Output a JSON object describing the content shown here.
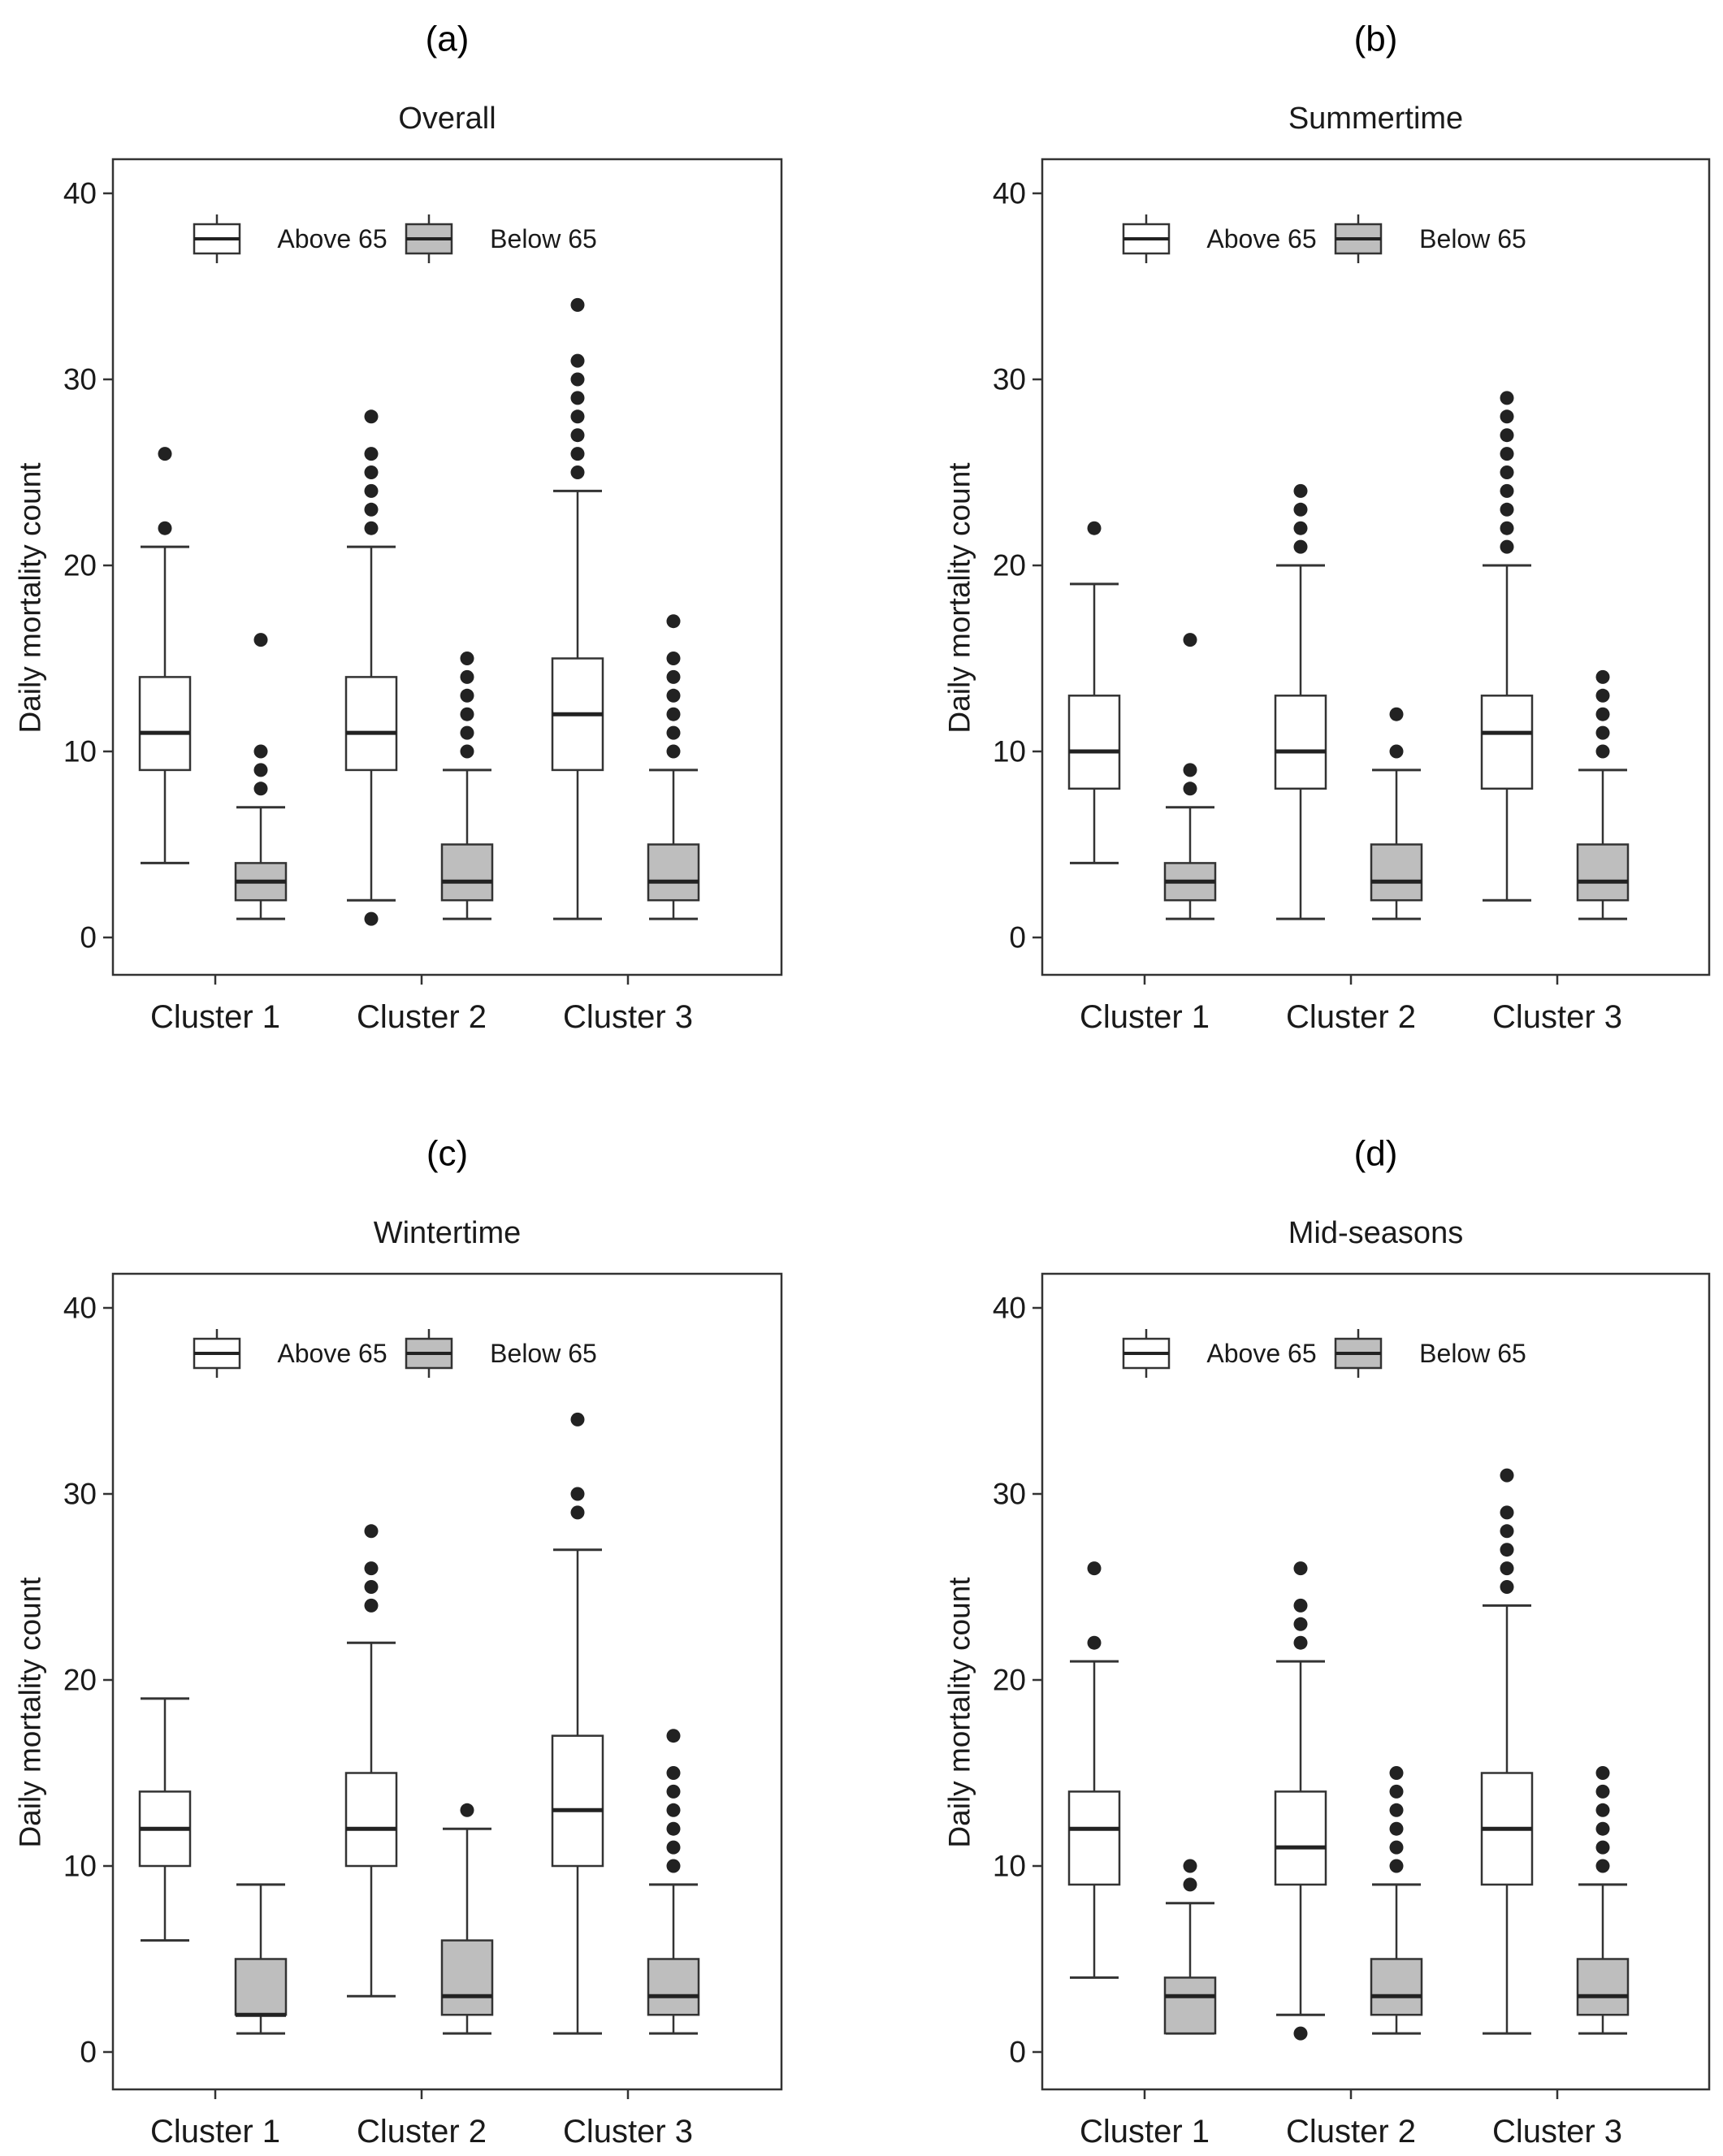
{
  "chart_data": [
    {
      "type": "boxplot",
      "panel_label": "(a)",
      "title": "Overall",
      "ylabel": "Daily mortality count",
      "ylim": [
        0,
        40
      ],
      "yticks": [
        0,
        10,
        20,
        30,
        40
      ],
      "categories": [
        "Cluster 1",
        "Cluster 2",
        "Cluster 3"
      ],
      "legend": {
        "position": "top",
        "entries": [
          "Above 65",
          "Below 65"
        ]
      },
      "series": [
        {
          "name": "Above 65",
          "fill": "#ffffff",
          "boxes": [
            {
              "min": 4,
              "q1": 9,
              "median": 11,
              "q3": 14,
              "max": 21,
              "outliers": [
                22,
                26
              ]
            },
            {
              "min": 2,
              "q1": 9,
              "median": 11,
              "q3": 14,
              "max": 21,
              "outliers": [
                1,
                22,
                23,
                24,
                25,
                26,
                28
              ]
            },
            {
              "min": 1,
              "q1": 9,
              "median": 12,
              "q3": 15,
              "max": 24,
              "outliers": [
                25,
                26,
                27,
                28,
                29,
                30,
                31,
                34
              ]
            }
          ]
        },
        {
          "name": "Below 65",
          "fill": "#bebebe",
          "boxes": [
            {
              "min": 1,
              "q1": 2,
              "median": 3,
              "q3": 4,
              "max": 7,
              "outliers": [
                8,
                9,
                10,
                16
              ]
            },
            {
              "min": 1,
              "q1": 2,
              "median": 3,
              "q3": 5,
              "max": 9,
              "outliers": [
                10,
                11,
                12,
                13,
                14,
                15
              ]
            },
            {
              "min": 1,
              "q1": 2,
              "median": 3,
              "q3": 5,
              "max": 9,
              "outliers": [
                10,
                11,
                12,
                13,
                14,
                15,
                17
              ]
            }
          ]
        }
      ]
    },
    {
      "type": "boxplot",
      "panel_label": "(b)",
      "title": "Summertime",
      "ylabel": "Daily mortality count",
      "ylim": [
        0,
        40
      ],
      "yticks": [
        0,
        10,
        20,
        30,
        40
      ],
      "categories": [
        "Cluster 1",
        "Cluster 2",
        "Cluster 3"
      ],
      "legend": {
        "position": "top",
        "entries": [
          "Above 65",
          "Below 65"
        ]
      },
      "series": [
        {
          "name": "Above 65",
          "fill": "#ffffff",
          "boxes": [
            {
              "min": 4,
              "q1": 8,
              "median": 10,
              "q3": 13,
              "max": 19,
              "outliers": [
                22
              ]
            },
            {
              "min": 1,
              "q1": 8,
              "median": 10,
              "q3": 13,
              "max": 20,
              "outliers": [
                21,
                22,
                23,
                24
              ]
            },
            {
              "min": 2,
              "q1": 8,
              "median": 11,
              "q3": 13,
              "max": 20,
              "outliers": [
                21,
                22,
                23,
                24,
                25,
                26,
                27,
                28,
                29
              ]
            }
          ]
        },
        {
          "name": "Below 65",
          "fill": "#bebebe",
          "boxes": [
            {
              "min": 1,
              "q1": 2,
              "median": 3,
              "q3": 4,
              "max": 7,
              "outliers": [
                8,
                9,
                16
              ]
            },
            {
              "min": 1,
              "q1": 2,
              "median": 3,
              "q3": 5,
              "max": 9,
              "outliers": [
                10,
                12
              ]
            },
            {
              "min": 1,
              "q1": 2,
              "median": 3,
              "q3": 5,
              "max": 9,
              "outliers": [
                10,
                11,
                12,
                13,
                14
              ]
            }
          ]
        }
      ]
    },
    {
      "type": "boxplot",
      "panel_label": "(c)",
      "title": "Wintertime",
      "ylabel": "Daily mortality count",
      "ylim": [
        0,
        40
      ],
      "yticks": [
        0,
        10,
        20,
        30,
        40
      ],
      "categories": [
        "Cluster 1",
        "Cluster 2",
        "Cluster 3"
      ],
      "legend": {
        "position": "top",
        "entries": [
          "Above 65",
          "Below 65"
        ]
      },
      "series": [
        {
          "name": "Above 65",
          "fill": "#ffffff",
          "boxes": [
            {
              "min": 6,
              "q1": 10,
              "median": 12,
              "q3": 14,
              "max": 19,
              "outliers": []
            },
            {
              "min": 3,
              "q1": 10,
              "median": 12,
              "q3": 15,
              "max": 22,
              "outliers": [
                24,
                25,
                26,
                28
              ]
            },
            {
              "min": 1,
              "q1": 10,
              "median": 13,
              "q3": 17,
              "max": 27,
              "outliers": [
                29,
                30,
                34
              ]
            }
          ]
        },
        {
          "name": "Below 65",
          "fill": "#bebebe",
          "boxes": [
            {
              "min": 1,
              "q1": 2,
              "median": 2,
              "q3": 5,
              "max": 9,
              "outliers": []
            },
            {
              "min": 1,
              "q1": 2,
              "median": 3,
              "q3": 6,
              "max": 12,
              "outliers": [
                13
              ]
            },
            {
              "min": 1,
              "q1": 2,
              "median": 3,
              "q3": 5,
              "max": 9,
              "outliers": [
                10,
                11,
                12,
                13,
                14,
                15,
                17
              ]
            }
          ]
        }
      ]
    },
    {
      "type": "boxplot",
      "panel_label": "(d)",
      "title": "Mid-seasons",
      "ylabel": "Daily mortality count",
      "ylim": [
        0,
        40
      ],
      "yticks": [
        0,
        10,
        20,
        30,
        40
      ],
      "categories": [
        "Cluster 1",
        "Cluster 2",
        "Cluster 3"
      ],
      "legend": {
        "position": "top",
        "entries": [
          "Above 65",
          "Below 65"
        ]
      },
      "series": [
        {
          "name": "Above 65",
          "fill": "#ffffff",
          "boxes": [
            {
              "min": 4,
              "q1": 9,
              "median": 12,
              "q3": 14,
              "max": 21,
              "outliers": [
                22,
                26
              ]
            },
            {
              "min": 2,
              "q1": 9,
              "median": 11,
              "q3": 14,
              "max": 21,
              "outliers": [
                1,
                22,
                23,
                24,
                26
              ]
            },
            {
              "min": 1,
              "q1": 9,
              "median": 12,
              "q3": 15,
              "max": 24,
              "outliers": [
                25,
                26,
                27,
                28,
                29,
                31
              ]
            }
          ]
        },
        {
          "name": "Below 65",
          "fill": "#bebebe",
          "boxes": [
            {
              "min": 1,
              "q1": 1,
              "median": 3,
              "q3": 4,
              "max": 8,
              "outliers": [
                9,
                10
              ]
            },
            {
              "min": 1,
              "q1": 2,
              "median": 3,
              "q3": 5,
              "max": 9,
              "outliers": [
                10,
                11,
                12,
                13,
                14,
                15
              ]
            },
            {
              "min": 1,
              "q1": 2,
              "median": 3,
              "q3": 5,
              "max": 9,
              "outliers": [
                10,
                11,
                12,
                13,
                14,
                15
              ]
            }
          ]
        }
      ]
    }
  ]
}
